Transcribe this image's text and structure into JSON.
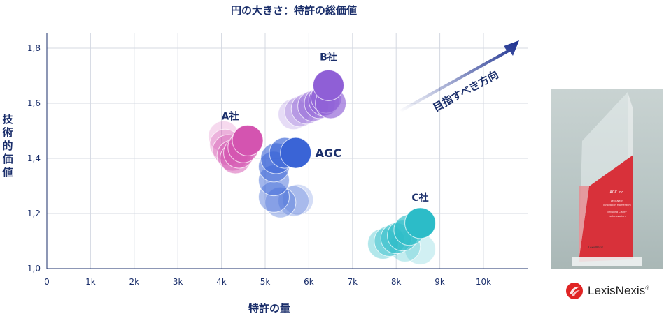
{
  "chart_data": {
    "type": "scatter",
    "title": "円の大きさ：特許の総価値",
    "xlabel": "特許の量",
    "ylabel": "技術的価値",
    "xlim": [
      0,
      11000
    ],
    "ylim": [
      1.0,
      1.85
    ],
    "xticks": [
      "0",
      "1k",
      "2k",
      "3k",
      "4k",
      "5k",
      "6k",
      "7k",
      "8k",
      "9k",
      "10k"
    ],
    "yticks": [
      "1,0",
      "1,2",
      "1,4",
      "1,6",
      "1,8"
    ],
    "grid": true,
    "annotation": "目指すべき方向",
    "series": [
      {
        "name": "A社",
        "color": "#d454b0",
        "points": [
          {
            "x": 4050,
            "y": 1.48
          },
          {
            "x": 4080,
            "y": 1.45
          },
          {
            "x": 4150,
            "y": 1.43
          },
          {
            "x": 4250,
            "y": 1.41
          },
          {
            "x": 4320,
            "y": 1.4
          },
          {
            "x": 4400,
            "y": 1.42
          },
          {
            "x": 4500,
            "y": 1.44
          },
          {
            "x": 4600,
            "y": 1.465
          }
        ]
      },
      {
        "name": "B社",
        "color": "#8f5fd6",
        "points": [
          {
            "x": 5650,
            "y": 1.56
          },
          {
            "x": 5800,
            "y": 1.57
          },
          {
            "x": 5950,
            "y": 1.58
          },
          {
            "x": 6100,
            "y": 1.59
          },
          {
            "x": 6250,
            "y": 1.6
          },
          {
            "x": 6350,
            "y": 1.61
          },
          {
            "x": 6400,
            "y": 1.62
          },
          {
            "x": 6500,
            "y": 1.6
          },
          {
            "x": 6450,
            "y": 1.665
          }
        ]
      },
      {
        "name": "AGC",
        "color": "#3a64d6",
        "points": [
          {
            "x": 5750,
            "y": 1.25
          },
          {
            "x": 5650,
            "y": 1.245
          },
          {
            "x": 5350,
            "y": 1.24
          },
          {
            "x": 5200,
            "y": 1.26
          },
          {
            "x": 5200,
            "y": 1.32
          },
          {
            "x": 5200,
            "y": 1.37
          },
          {
            "x": 5250,
            "y": 1.4
          },
          {
            "x": 5450,
            "y": 1.42
          },
          {
            "x": 5700,
            "y": 1.42
          }
        ]
      },
      {
        "name": "C社",
        "color": "#2cbcc8",
        "points": [
          {
            "x": 8550,
            "y": 1.07
          },
          {
            "x": 8200,
            "y": 1.08
          },
          {
            "x": 7700,
            "y": 1.09
          },
          {
            "x": 7850,
            "y": 1.1
          },
          {
            "x": 8000,
            "y": 1.11
          },
          {
            "x": 8150,
            "y": 1.12
          },
          {
            "x": 8300,
            "y": 1.14
          },
          {
            "x": 8550,
            "y": 1.165
          }
        ]
      }
    ]
  },
  "trophy": {
    "plate_company": "AGC Inc.",
    "plate_line1": "LexisNexis",
    "plate_line2": "Innovation Momentum",
    "plate_line3": "Bringing Clarity",
    "plate_line4": "to Innovation",
    "base_text": "LexisNexis"
  },
  "logo": {
    "text": "LexisNexis",
    "mark": "®"
  }
}
